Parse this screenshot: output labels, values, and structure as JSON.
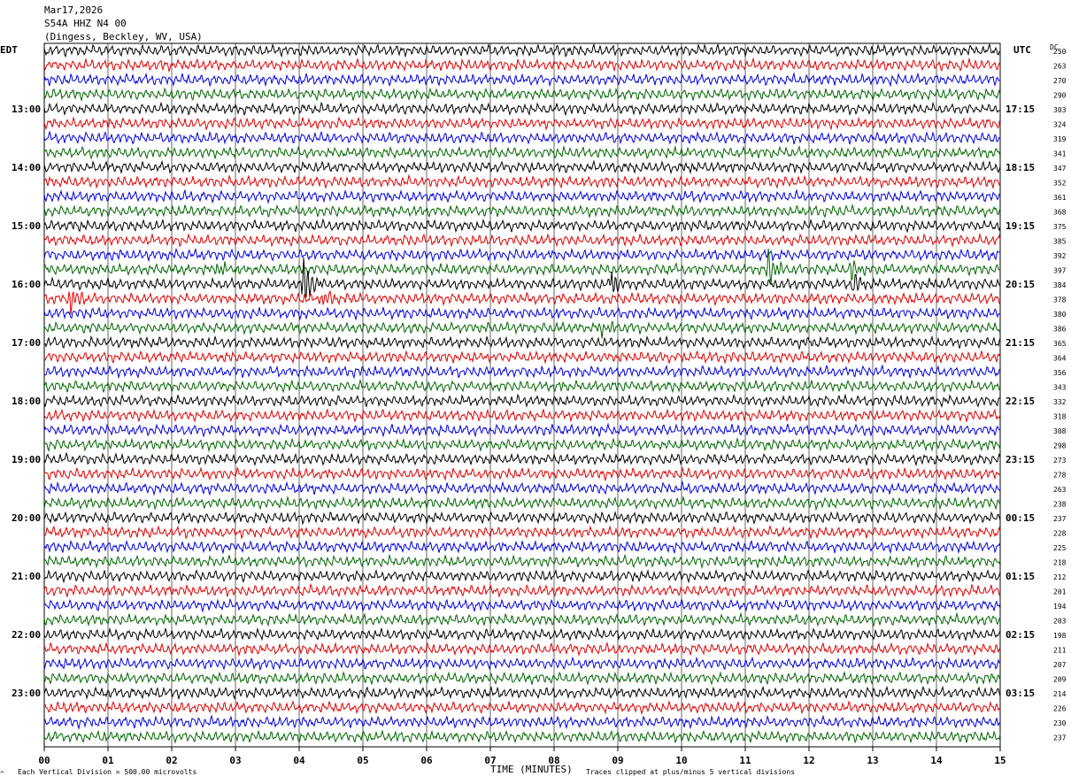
{
  "header": {
    "date": "Mar17,2026",
    "station": "S54A HHZ N4 00",
    "location": "(Dingess, Beckley, WV, USA)"
  },
  "left_axis_label": "EDT",
  "right_axis_label": "UTC",
  "dc_label": "DC",
  "footer": {
    "scale_note": "Each Vertical Division =  500.00 microvolts",
    "clip_note": "Traces clipped at plus/minus 5 vertical divisions",
    "corner_mark": "^"
  },
  "colors": {
    "trace_cycle": [
      "#000000",
      "#dd0000",
      "#0000dd",
      "#006600"
    ],
    "grid": "#000000"
  },
  "chart_data": {
    "type": "line",
    "title": "S54A HHZ N4 00",
    "xlabel": "TIME (MINUTES)",
    "xlim": [
      0,
      15
    ],
    "x_ticks": [
      "00",
      "01",
      "02",
      "03",
      "04",
      "05",
      "06",
      "07",
      "08",
      "09",
      "10",
      "11",
      "12",
      "13",
      "14",
      "15"
    ],
    "traces_per_hour": 4,
    "left_time_labels": [
      "13:00",
      "14:00",
      "15:00",
      "16:00",
      "17:00",
      "18:00",
      "19:00",
      "20:00",
      "21:00",
      "22:00",
      "23:00"
    ],
    "right_time_labels": [
      "17:15",
      "18:15",
      "19:15",
      "20:15",
      "21:15",
      "22:15",
      "23:15",
      "00:15",
      "01:15",
      "02:15",
      "03:15"
    ],
    "dc_offsets": [
      250,
      263,
      270,
      290,
      303,
      324,
      319,
      341,
      347,
      352,
      361,
      368,
      375,
      385,
      392,
      397,
      384,
      378,
      380,
      386,
      365,
      364,
      356,
      343,
      332,
      318,
      308,
      298,
      273,
      278,
      263,
      238,
      237,
      228,
      225,
      218,
      212,
      201,
      194,
      203,
      198,
      211,
      207,
      209,
      214,
      226,
      230,
      237
    ],
    "events": [
      {
        "trace": 15,
        "minute": 2.7,
        "amplitude": 0.6
      },
      {
        "trace": 16,
        "minute": 4.05,
        "amplitude": 2.4
      },
      {
        "trace": 17,
        "minute": 0.4,
        "amplitude": 1.3
      },
      {
        "trace": 17,
        "minute": 4.35,
        "amplitude": 0.9
      },
      {
        "trace": 16,
        "minute": 8.9,
        "amplitude": 1.0
      },
      {
        "trace": 19,
        "minute": 8.75,
        "amplitude": 0.7
      },
      {
        "trace": 15,
        "minute": 11.35,
        "amplitude": 1.6
      },
      {
        "trace": 15,
        "minute": 12.65,
        "amplitude": 0.9
      },
      {
        "trace": 16,
        "minute": 12.7,
        "amplitude": 0.9
      }
    ]
  }
}
